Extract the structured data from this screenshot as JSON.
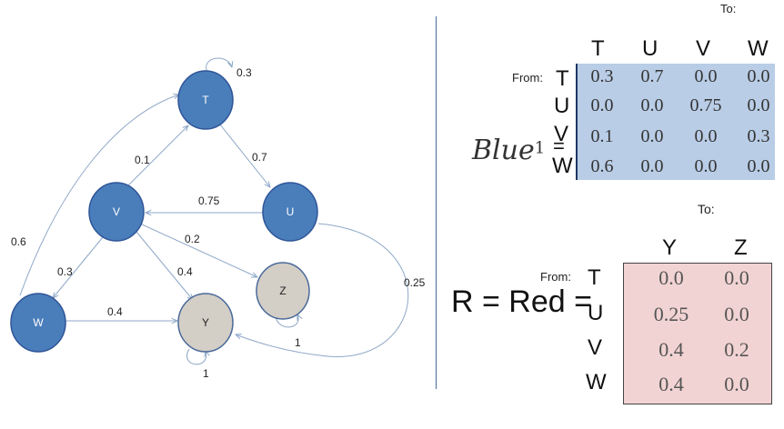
{
  "graph": {
    "nodes": [
      {
        "id": "T",
        "label": "T",
        "color": "#4a7ebb"
      },
      {
        "id": "U",
        "label": "U",
        "color": "#4a7ebb"
      },
      {
        "id": "V",
        "label": "V",
        "color": "#4a7ebb"
      },
      {
        "id": "W",
        "label": "W",
        "color": "#4a7ebb"
      },
      {
        "id": "Y",
        "label": "Y",
        "color": "#d3cec6"
      },
      {
        "id": "Z",
        "label": "Z",
        "color": "#d3cec6"
      }
    ],
    "edges": [
      {
        "from": "T",
        "to": "T",
        "label": "0.3"
      },
      {
        "from": "T",
        "to": "U",
        "label": "0.7"
      },
      {
        "from": "U",
        "to": "V",
        "label": "0.75"
      },
      {
        "from": "U",
        "to": "Y",
        "label": "0.25"
      },
      {
        "from": "V",
        "to": "T",
        "label": "0.1"
      },
      {
        "from": "V",
        "to": "Z",
        "label": "0.2"
      },
      {
        "from": "V",
        "to": "Y",
        "label": "0.4"
      },
      {
        "from": "V",
        "to": "W",
        "label": "0.3"
      },
      {
        "from": "W",
        "to": "T",
        "label": "0.6"
      },
      {
        "from": "W",
        "to": "Y",
        "label": "0.4"
      },
      {
        "from": "Y",
        "to": "Y",
        "label": "1"
      },
      {
        "from": "Z",
        "to": "Z",
        "label": "1"
      }
    ],
    "edge_color": "#8fa8c8"
  },
  "blue_matrix": {
    "to_label": "To:",
    "from_label": "From:",
    "name": "Blue",
    "superscript": "1",
    "equals": "=",
    "columns": [
      "T",
      "U",
      "V",
      "W"
    ],
    "rows": [
      {
        "label": "T",
        "values": [
          "0.3",
          "0.7",
          "0.0",
          "0.0"
        ]
      },
      {
        "label": "U",
        "values": [
          "0.0",
          "0.0",
          "0.75",
          "0.0"
        ]
      },
      {
        "label": "V",
        "values": [
          "0.1",
          "0.0",
          "0.0",
          "0.3"
        ]
      },
      {
        "label": "W",
        "values": [
          "0.6",
          "0.0",
          "0.0",
          "0.0"
        ]
      }
    ],
    "fill_color": "#b9cde6"
  },
  "red_matrix": {
    "to_label": "To:",
    "from_label": "From:",
    "name": "R = Red =",
    "columns": [
      "Y",
      "Z"
    ],
    "rows": [
      {
        "label": "T",
        "values": [
          "0.0",
          "0.0"
        ]
      },
      {
        "label": "U",
        "values": [
          "0.25",
          "0.0"
        ]
      },
      {
        "label": "V",
        "values": [
          "0.4",
          "0.2"
        ]
      },
      {
        "label": "W",
        "values": [
          "0.4",
          "0.0"
        ]
      }
    ],
    "fill_color": "#f2d3d3"
  }
}
